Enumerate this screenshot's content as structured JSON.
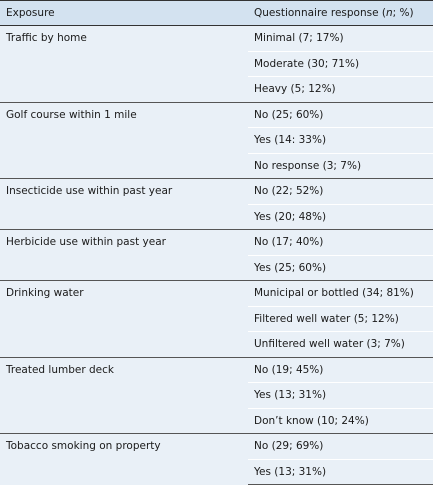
{
  "header": {
    "columns": [
      "Exposure",
      [
        "Questionnaire response (",
        "n",
        "; %)"
      ]
    ]
  },
  "groups": [
    {
      "exposure": "Traffic by home",
      "responses": [
        "Minimal (7; 17%)",
        "Moderate (30; 71%)",
        "Heavy (5; 12%)"
      ]
    },
    {
      "exposure": "Golf course within 1 mile",
      "responses": [
        "No (25; 60%)",
        "Yes (14: 33%)",
        "No response (3; 7%)"
      ]
    },
    {
      "exposure": "Insecticide use within past year",
      "responses": [
        "No (22; 52%)",
        "Yes (20; 48%)"
      ]
    },
    {
      "exposure": "Herbicide use within past year",
      "responses": [
        "No (17; 40%)",
        "Yes (25; 60%)"
      ]
    },
    {
      "exposure": "Drinking water",
      "responses": [
        "Municipal or bottled (34; 81%)",
        "Filtered well water (5; 12%)",
        "Unfiltered well water (3; 7%)"
      ]
    },
    {
      "exposure": "Treated lumber deck",
      "responses": [
        "No (19; 45%)",
        "Yes (13; 31%)",
        "Don’t know (10; 24%)"
      ]
    },
    {
      "exposure": "Tobacco smoking on property",
      "responses": [
        "No (29; 69%)",
        "Yes (13; 31%)"
      ]
    }
  ]
}
